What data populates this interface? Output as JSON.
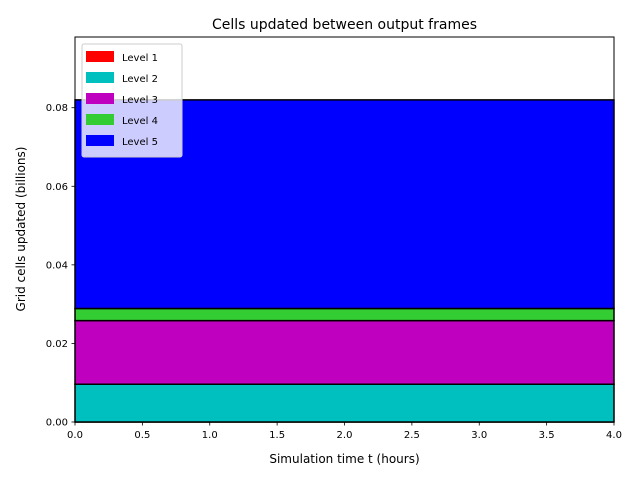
{
  "chart_data": {
    "type": "area",
    "title": "Cells updated between output frames",
    "xlabel": "Simulation time t (hours)",
    "ylabel": "Grid cells updated (billions)",
    "xlim": [
      0,
      4
    ],
    "ylim": [
      0,
      0.098
    ],
    "x_ticks": [
      "0.0",
      "0.5",
      "1.0",
      "1.5",
      "2.0",
      "2.5",
      "3.0",
      "3.5",
      "4.0"
    ],
    "y_ticks": [
      "0.00",
      "0.02",
      "0.04",
      "0.06",
      "0.08"
    ],
    "legend_position": "top-left",
    "x": [
      0,
      4
    ],
    "series": [
      {
        "name": "Level 1",
        "color": "#ff0000",
        "values": [
          0.0,
          0.0
        ]
      },
      {
        "name": "Level 2",
        "color": "#00bfbf",
        "values": [
          0.0096,
          0.0096
        ]
      },
      {
        "name": "Level 3",
        "color": "#bf00bf",
        "values": [
          0.0162,
          0.0162
        ]
      },
      {
        "name": "Level 4",
        "color": "#33cc33",
        "values": [
          0.0031,
          0.0031
        ]
      },
      {
        "name": "Level 5",
        "color": "#0000ff",
        "values": [
          0.0531,
          0.0531
        ]
      }
    ]
  }
}
